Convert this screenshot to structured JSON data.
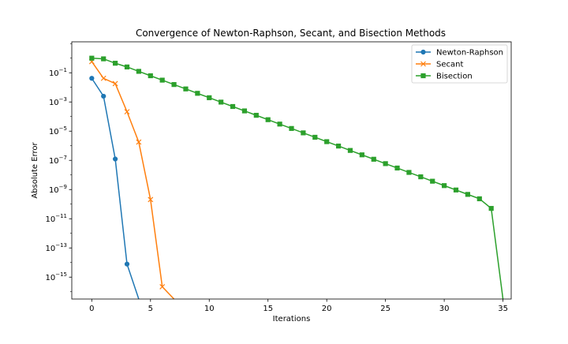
{
  "chart_data": {
    "type": "line",
    "title": "Convergence of Newton-Raphson, Secant, and Bisection Methods",
    "xlabel": "Iterations",
    "ylabel": "Absolute Error",
    "xlim": [
      -1.7,
      35.7
    ],
    "ylim_log10": [
      -16.5,
      1.12
    ],
    "y_scale": "log",
    "grid": false,
    "legend_position": "top-right",
    "x_ticks": [
      0,
      5,
      10,
      15,
      20,
      25,
      30,
      35
    ],
    "y_ticks_exponents": [
      -15,
      -13,
      -11,
      -9,
      -7,
      -5,
      -3,
      -1
    ],
    "y_tick_base": "10",
    "series": [
      {
        "name": "Newton-Raphson",
        "color": "#1f77b4",
        "marker": "circle",
        "x": [
          0,
          1,
          2,
          3,
          4
        ],
        "y": [
          0.0417,
          0.00247,
          1.24e-07,
          7.8e-15,
          0
        ]
      },
      {
        "name": "Secant",
        "color": "#ff7f0e",
        "marker": "x",
        "x": [
          0,
          1,
          2,
          3,
          4,
          5,
          6,
          7
        ],
        "y": [
          0.586,
          0.0417,
          0.0181,
          0.000214,
          1.79e-06,
          2.06e-10,
          2.2e-16,
          0
        ]
      },
      {
        "name": "Bisection",
        "color": "#2ca02c",
        "marker": "square",
        "x": [
          0,
          1,
          2,
          3,
          4,
          5,
          6,
          7,
          8,
          9,
          10,
          11,
          12,
          13,
          14,
          15,
          16,
          17,
          18,
          19,
          20,
          21,
          22,
          23,
          24,
          25,
          26,
          27,
          28,
          29,
          30,
          31,
          32,
          33,
          34,
          35
        ],
        "y": [
          1.0,
          0.9,
          0.45,
          0.25,
          0.125,
          0.0625,
          0.03125,
          0.015625,
          0.0078125,
          0.00390625,
          0.001953125,
          0.0009765625,
          0.00048828125,
          0.000244140625,
          0.0001220703125,
          6.103515625e-05,
          3.0517578125e-05,
          1.52587890625e-05,
          7.62939453125e-06,
          3.814697265625e-06,
          1.9073486328125e-06,
          9.5367431640625e-07,
          4.76837158203125e-07,
          2.384185791015625e-07,
          1.1920928955078125e-07,
          5.960464477539063e-08,
          2.9802322387695312e-08,
          1.4901161193847656e-08,
          7.450580596923828e-09,
          3.725290298461914e-09,
          1.862645149230957e-09,
          9.313225746154785e-10,
          4.656612873077393e-10,
          2.3283064365386963e-10,
          5.1e-11,
          0
        ]
      }
    ]
  }
}
